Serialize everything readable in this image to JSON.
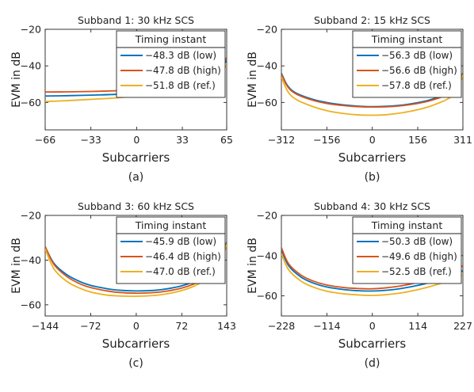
{
  "colors": {
    "low": "#0072BD",
    "high": "#D95319",
    "ref": "#EDB120",
    "axis": "#222222",
    "grid": "#DDDDDD"
  },
  "chart_data": [
    {
      "type": "line",
      "title": "Subband 1: 30 kHz SCS",
      "caption": "(a)",
      "xlabel": "Subcarriers",
      "ylabel": "EVM in dB",
      "xlim": [
        -66,
        65
      ],
      "ylim": [
        -75,
        -20
      ],
      "xticks": [
        -66,
        -33,
        0,
        33,
        65
      ],
      "yticks": [
        -20,
        -40,
        -60
      ],
      "grid": false,
      "legend": {
        "title": "Timing instant",
        "placement": "top-right"
      },
      "series": [
        {
          "name": "−48.3 dB (low)",
          "key": "low",
          "x": [
            -66,
            -50,
            -33,
            -15,
            0,
            15,
            33,
            45,
            55,
            60,
            65
          ],
          "y": [
            -56.5,
            -56.3,
            -56.0,
            -55.6,
            -55.0,
            -54.0,
            -51.5,
            -49.0,
            -45.5,
            -42.0,
            -37.0
          ]
        },
        {
          "name": "−47.8 dB (high)",
          "key": "high",
          "x": [
            -66,
            -50,
            -33,
            -15,
            0,
            15,
            33,
            45,
            55,
            60,
            65
          ],
          "y": [
            -54.3,
            -54.2,
            -54.0,
            -53.6,
            -53.0,
            -52.0,
            -49.5,
            -47.0,
            -43.5,
            -40.5,
            -35.5
          ]
        },
        {
          "name": "−51.8 dB (ref.)",
          "key": "ref",
          "x": [
            -66,
            -50,
            -33,
            -15,
            0,
            15,
            33,
            45,
            55,
            60,
            65
          ],
          "y": [
            -59.5,
            -59.0,
            -58.3,
            -57.5,
            -56.5,
            -55.2,
            -53.0,
            -50.5,
            -47.0,
            -44.0,
            -40.0
          ]
        }
      ]
    },
    {
      "type": "line",
      "title": "Subband 2: 15 kHz SCS",
      "caption": "(b)",
      "xlabel": "Subcarriers",
      "ylabel": "EVM in dB",
      "xlim": [
        -312,
        311
      ],
      "ylim": [
        -75,
        -20
      ],
      "xticks": [
        -312,
        -156,
        0,
        156,
        311
      ],
      "yticks": [
        -20,
        -40,
        -60
      ],
      "grid": false,
      "legend": {
        "title": "Timing instant",
        "placement": "top-right"
      },
      "series": [
        {
          "name": "−56.3 dB (low)",
          "key": "low",
          "x": [
            -312,
            -290,
            -260,
            -200,
            -150,
            -100,
            -50,
            0,
            50,
            100,
            150,
            200,
            260,
            290,
            311
          ],
          "y": [
            -44,
            -51,
            -55,
            -58.5,
            -60.2,
            -61.3,
            -62,
            -62.3,
            -62.1,
            -61.5,
            -60.3,
            -58.5,
            -55,
            -51,
            -44
          ]
        },
        {
          "name": "−56.6 dB (high)",
          "key": "high",
          "x": [
            -312,
            -290,
            -260,
            -200,
            -150,
            -100,
            -50,
            0,
            50,
            100,
            150,
            200,
            260,
            290,
            311
          ],
          "y": [
            -44.5,
            -51.5,
            -55.5,
            -59,
            -60.7,
            -61.7,
            -62.3,
            -62.5,
            -62.4,
            -61.8,
            -60.7,
            -59,
            -55.5,
            -51.5,
            -44.5
          ]
        },
        {
          "name": "−57.8 dB (ref.)",
          "key": "ref",
          "x": [
            -312,
            -290,
            -260,
            -200,
            -150,
            -100,
            -50,
            0,
            50,
            100,
            150,
            200,
            260,
            290,
            311
          ],
          "y": [
            -46,
            -54,
            -58.5,
            -62.5,
            -64.7,
            -66,
            -66.8,
            -67,
            -66.7,
            -65.7,
            -64.2,
            -62,
            -58,
            -53.5,
            -45
          ]
        }
      ]
    },
    {
      "type": "line",
      "title": "Subband 3: 60 kHz SCS",
      "caption": "(c)",
      "xlabel": "Subcarriers",
      "ylabel": "EVM in dB",
      "xlim": [
        -144,
        143
      ],
      "ylim": [
        -65,
        -20
      ],
      "xticks": [
        -144,
        -72,
        0,
        72,
        143
      ],
      "yticks": [
        -20,
        -40,
        -60
      ],
      "grid": false,
      "legend": {
        "title": "Timing instant",
        "placement": "top-right"
      },
      "series": [
        {
          "name": "−45.9 dB (low)",
          "key": "low",
          "x": [
            -144,
            -130,
            -110,
            -90,
            -72,
            -50,
            -30,
            0,
            30,
            50,
            72,
            90,
            110,
            130,
            143
          ],
          "y": [
            -34,
            -41.5,
            -46.5,
            -49.5,
            -51.3,
            -52.6,
            -53.4,
            -53.8,
            -53.5,
            -52.8,
            -51.5,
            -49.8,
            -47,
            -42,
            -32
          ]
        },
        {
          "name": "−46.4 dB (high)",
          "key": "high",
          "x": [
            -144,
            -130,
            -110,
            -90,
            -72,
            -50,
            -30,
            0,
            30,
            50,
            72,
            90,
            110,
            130,
            143
          ],
          "y": [
            -34,
            -42,
            -47.3,
            -50.5,
            -52.3,
            -53.6,
            -54.4,
            -54.8,
            -54.5,
            -53.8,
            -52.5,
            -50.8,
            -48,
            -43,
            -32.5
          ]
        },
        {
          "name": "−47.0 dB (ref.)",
          "key": "ref",
          "x": [
            -144,
            -130,
            -110,
            -90,
            -72,
            -50,
            -30,
            0,
            30,
            50,
            72,
            90,
            110,
            130,
            143
          ],
          "y": [
            -35,
            -44,
            -49.5,
            -52.5,
            -54.3,
            -55.5,
            -56,
            -56.2,
            -55.8,
            -55,
            -53.6,
            -51.8,
            -48.8,
            -43.5,
            -33
          ]
        }
      ]
    },
    {
      "type": "line",
      "title": "Subband 4: 30 kHz SCS",
      "caption": "(d)",
      "xlabel": "Subcarriers",
      "ylabel": "EVM in dB",
      "xlim": [
        -228,
        227
      ],
      "ylim": [
        -70,
        -20
      ],
      "xticks": [
        -228,
        -114,
        0,
        114,
        227
      ],
      "yticks": [
        -20,
        -40,
        -60
      ],
      "grid": false,
      "legend": {
        "title": "Timing instant",
        "placement": "top-right"
      },
      "series": [
        {
          "name": "−50.3 dB (low)",
          "key": "low",
          "x": [
            -228,
            -210,
            -180,
            -150,
            -114,
            -70,
            -30,
            0,
            30,
            70,
            114,
            150,
            180,
            210,
            227
          ],
          "y": [
            -37,
            -45,
            -50.5,
            -53.5,
            -55.6,
            -56.9,
            -57.5,
            -57.6,
            -57.3,
            -56.4,
            -54.8,
            -53,
            -51.2,
            -49.2,
            -47.5
          ]
        },
        {
          "name": "−49.6 dB (high)",
          "key": "high",
          "x": [
            -228,
            -210,
            -180,
            -150,
            -114,
            -70,
            -30,
            0,
            30,
            70,
            114,
            150,
            180,
            210,
            227
          ],
          "y": [
            -36,
            -44,
            -49.5,
            -52.5,
            -54.6,
            -55.9,
            -56.4,
            -56.5,
            -56.1,
            -55.1,
            -53.3,
            -51.3,
            -49.4,
            -47.2,
            -45
          ]
        },
        {
          "name": "−52.5 dB (ref.)",
          "key": "ref",
          "x": [
            -228,
            -210,
            -180,
            -150,
            -114,
            -70,
            -30,
            0,
            30,
            70,
            114,
            150,
            180,
            210,
            227
          ],
          "y": [
            -39,
            -47,
            -52.5,
            -55.5,
            -57.7,
            -59,
            -59.6,
            -59.8,
            -59.5,
            -58.6,
            -56.9,
            -55.1,
            -53.3,
            -51.2,
            -49.5
          ]
        }
      ]
    }
  ]
}
